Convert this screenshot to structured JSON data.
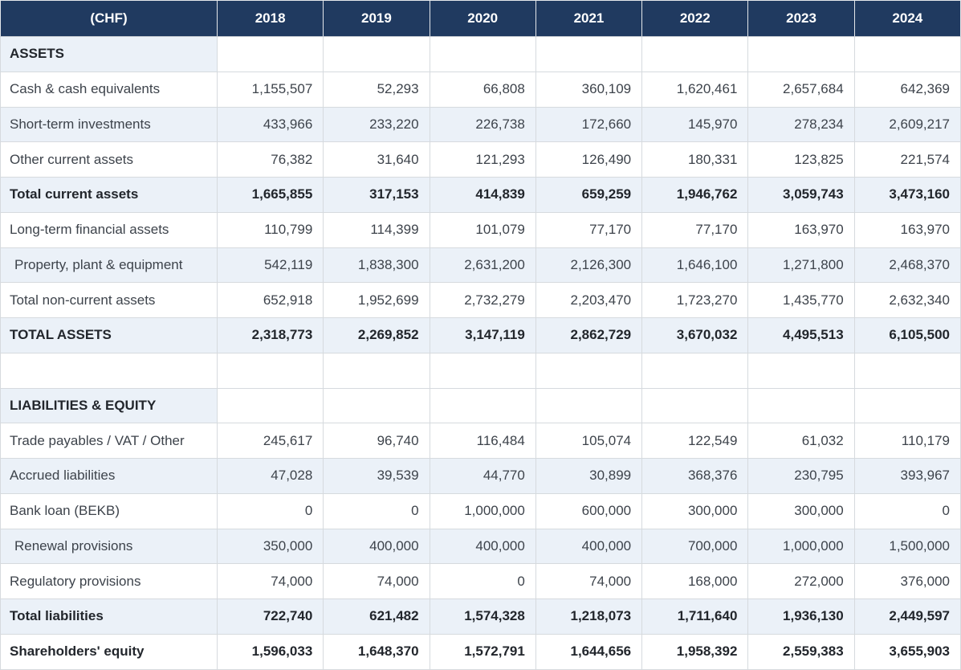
{
  "colors": {
    "header_bg": "#203A60",
    "header_text": "#FFFFFF",
    "row_shade": "#EBF1F8",
    "border": "#D6DADE"
  },
  "chart_data": {
    "type": "table",
    "unit_label": "(CHF)",
    "years": [
      "2018",
      "2019",
      "2020",
      "2021",
      "2022",
      "2023",
      "2024"
    ],
    "rows": [
      {
        "type": "section",
        "label": "ASSETS",
        "values": [
          "",
          "",
          "",
          "",
          "",
          "",
          ""
        ]
      },
      {
        "type": "data",
        "label": "Cash & cash equivalents",
        "values": [
          "1,155,507",
          "52,293",
          "66,808",
          "360,109",
          "1,620,461",
          "2,657,684",
          "642,369"
        ]
      },
      {
        "type": "data",
        "label": "Short-term investments",
        "values": [
          "433,966",
          "233,220",
          "226,738",
          "172,660",
          "145,970",
          "278,234",
          "2,609,217"
        ]
      },
      {
        "type": "data",
        "label": "Other current assets",
        "values": [
          "76,382",
          "31,640",
          "121,293",
          "126,490",
          "180,331",
          "123,825",
          "221,574"
        ]
      },
      {
        "type": "total",
        "label": "Total current assets",
        "values": [
          "1,665,855",
          "317,153",
          "414,839",
          "659,259",
          "1,946,762",
          "3,059,743",
          "3,473,160"
        ]
      },
      {
        "type": "data",
        "label": "Long-term financial assets",
        "values": [
          "110,799",
          "114,399",
          "101,079",
          "77,170",
          "77,170",
          "163,970",
          "163,970"
        ]
      },
      {
        "type": "data",
        "indent": true,
        "label": "Property, plant & equipment",
        "values": [
          "542,119",
          "1,838,300",
          "2,631,200",
          "2,126,300",
          "1,646,100",
          "1,271,800",
          "2,468,370"
        ]
      },
      {
        "type": "data",
        "label": "Total non-current assets",
        "values": [
          "652,918",
          "1,952,699",
          "2,732,279",
          "2,203,470",
          "1,723,270",
          "1,435,770",
          "2,632,340"
        ]
      },
      {
        "type": "total",
        "label": "TOTAL ASSETS",
        "values": [
          "2,318,773",
          "2,269,852",
          "3,147,119",
          "2,862,729",
          "3,670,032",
          "4,495,513",
          "6,105,500"
        ]
      },
      {
        "type": "spacer",
        "label": "",
        "values": [
          "",
          "",
          "",
          "",
          "",
          "",
          ""
        ]
      },
      {
        "type": "section",
        "label": "LIABILITIES & EQUITY",
        "values": [
          "",
          "",
          "",
          "",
          "",
          "",
          ""
        ]
      },
      {
        "type": "data",
        "label": "Trade payables / VAT / Other",
        "values": [
          "245,617",
          "96,740",
          "116,484",
          "105,074",
          "122,549",
          "61,032",
          "110,179"
        ]
      },
      {
        "type": "data",
        "label": "Accrued liabilities",
        "values": [
          "47,028",
          "39,539",
          "44,770",
          "30,899",
          "368,376",
          "230,795",
          "393,967"
        ]
      },
      {
        "type": "data",
        "label": "Bank loan (BEKB)",
        "values": [
          "0",
          "0",
          "1,000,000",
          "600,000",
          "300,000",
          "300,000",
          "0"
        ]
      },
      {
        "type": "data",
        "indent": true,
        "label": "Renewal provisions",
        "values": [
          "350,000",
          "400,000",
          "400,000",
          "400,000",
          "700,000",
          "1,000,000",
          "1,500,000"
        ]
      },
      {
        "type": "data",
        "label": "Regulatory provisions",
        "values": [
          "74,000",
          "74,000",
          "0",
          "74,000",
          "168,000",
          "272,000",
          "376,000"
        ]
      },
      {
        "type": "total",
        "label": "Total liabilities",
        "values": [
          "722,740",
          "621,482",
          "1,574,328",
          "1,218,073",
          "1,711,640",
          "1,936,130",
          "2,449,597"
        ]
      },
      {
        "type": "total",
        "label": "Shareholders' equity",
        "values": [
          "1,596,033",
          "1,648,370",
          "1,572,791",
          "1,644,656",
          "1,958,392",
          "2,559,383",
          "3,655,903"
        ]
      }
    ]
  }
}
